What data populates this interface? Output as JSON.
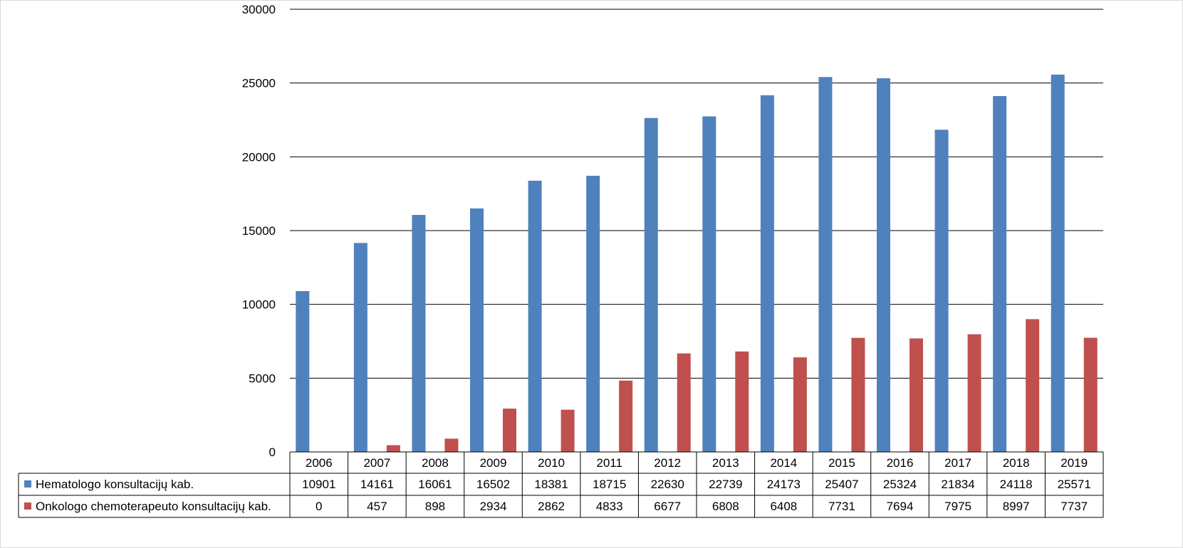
{
  "chart_data": {
    "type": "bar",
    "categories": [
      "2006",
      "2007",
      "2008",
      "2009",
      "2010",
      "2011",
      "2012",
      "2013",
      "2014",
      "2015",
      "2016",
      "2017",
      "2018",
      "2019"
    ],
    "series": [
      {
        "name": "Hematologo konsultacijų kab.",
        "color": "#4f81bd",
        "values": [
          10901,
          14161,
          16061,
          16502,
          18381,
          18715,
          22630,
          22739,
          24173,
          25407,
          25324,
          21834,
          24118,
          25571
        ]
      },
      {
        "name": "Onkologo chemoterapeuto konsultacijų kab.",
        "color": "#c0504d",
        "values": [
          0,
          457,
          898,
          2934,
          2862,
          4833,
          6677,
          6808,
          6408,
          7731,
          7694,
          7975,
          8997,
          7737
        ]
      }
    ],
    "y_ticks": [
      "30000",
      "25000",
      "20000",
      "15000",
      "10000",
      "5000",
      "0"
    ],
    "ylim": [
      0,
      30000
    ],
    "grid": true,
    "legend": "data-table-left",
    "data_table": true
  }
}
